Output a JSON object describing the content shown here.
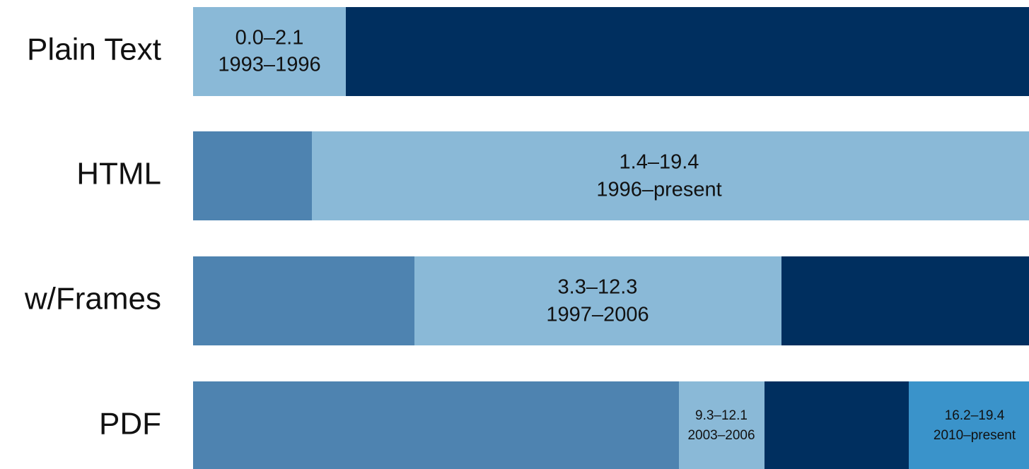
{
  "rows": [
    {
      "label": "Plain Text",
      "segments": [
        {
          "lines": [
            "0.0–2.1",
            "1993–1996"
          ]
        }
      ]
    },
    {
      "label": "HTML",
      "segments": [
        {
          "lines": [
            "1.4–19.4",
            "1996–present"
          ]
        }
      ]
    },
    {
      "label": "w/Frames",
      "segments": [
        {
          "lines": [
            "3.3–12.3",
            "1997–2006"
          ]
        }
      ]
    },
    {
      "label": "PDF",
      "segments": [
        {
          "lines": [
            "9.3–12.1",
            "2003–2006"
          ]
        },
        {
          "lines": [
            "16.2–19.4",
            "2010–present"
          ]
        }
      ]
    }
  ]
}
